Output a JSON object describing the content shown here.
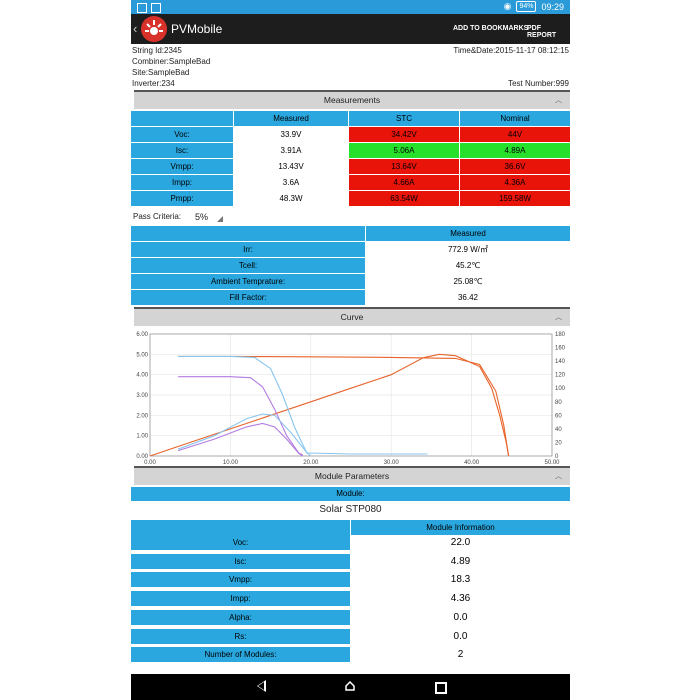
{
  "status_bar": {
    "battery": "94%",
    "time": "09:29"
  },
  "app_bar": {
    "back": "‹",
    "title": "PVMobile",
    "bookmarks": "ADD TO BOOKMARKS",
    "pdf": "PDF REPORT"
  },
  "info": {
    "string_id": "String Id:2345",
    "combiner": "Combiner:SampleBad",
    "site": "Site:SampleBad",
    "inverter": "Inverter:234",
    "datetime": "Time&Date:2015-11-17 08:12:15",
    "test_number": "Test Number:999"
  },
  "measurements": {
    "title": "Measurements",
    "headers": [
      "Measured",
      "STC",
      "Nominal"
    ],
    "rows": [
      {
        "label": "Voc:",
        "measured": "33.9V",
        "stc": "34.42V",
        "nominal": "44V",
        "stc_status": "red",
        "nominal_status": "red"
      },
      {
        "label": "Isc:",
        "measured": "3.91A",
        "stc": "5.06A",
        "nominal": "4.89A",
        "stc_status": "green",
        "nominal_status": "green"
      },
      {
        "label": "Vmpp:",
        "measured": "13.43V",
        "stc": "13.64V",
        "nominal": "36.6V",
        "stc_status": "red",
        "nominal_status": "red"
      },
      {
        "label": "Impp:",
        "measured": "3.6A",
        "stc": "4.66A",
        "nominal": "4.36A",
        "stc_status": "red",
        "nominal_status": "red"
      },
      {
        "label": "Pmpp:",
        "measured": "48.3W",
        "stc": "63.54W",
        "nominal": "159.58W",
        "stc_status": "red",
        "nominal_status": "red"
      }
    ]
  },
  "pass_criteria": {
    "label": "Pass Criteria:",
    "value": "5%"
  },
  "conditions": {
    "header": "Measured",
    "rows": [
      {
        "label": "Irr:",
        "value": "772.9 W/㎡"
      },
      {
        "label": "Tcell:",
        "value": "45.2℃"
      },
      {
        "label": "Ambient Temprature:",
        "value": "25.08℃"
      },
      {
        "label": "Fill Factor:",
        "value": "36.42"
      }
    ]
  },
  "curve_section": {
    "title": "Curve"
  },
  "chart_data": {
    "type": "line",
    "x_ticks": [
      "0.00",
      "10.00",
      "20.00",
      "30.00",
      "40.00",
      "50.00"
    ],
    "y_left_ticks": [
      "0.00",
      "1.00",
      "2.00",
      "3.00",
      "4.00",
      "5.00",
      "6.00"
    ],
    "y_right_ticks": [
      "0",
      "20",
      "40",
      "60",
      "80",
      "100",
      "120",
      "140",
      "160",
      "180"
    ],
    "xlim": [
      0,
      50
    ],
    "ylim_left": [
      0,
      6
    ],
    "ylim_right": [
      0,
      180
    ],
    "series": [
      {
        "axis": "left",
        "color": "#e8642a",
        "points": [
          [
            3.5,
            4.9
          ],
          [
            10,
            4.9
          ],
          [
            20,
            4.88
          ],
          [
            30,
            4.85
          ],
          [
            38,
            4.8
          ],
          [
            41,
            4.5
          ],
          [
            43,
            3.2
          ],
          [
            44,
            1.5
          ],
          [
            44.6,
            0
          ]
        ]
      },
      {
        "axis": "right",
        "color": "#e8642a",
        "points": [
          [
            0,
            0
          ],
          [
            5,
            20
          ],
          [
            10,
            40
          ],
          [
            15,
            60
          ],
          [
            20,
            80
          ],
          [
            25,
            100
          ],
          [
            30,
            120
          ],
          [
            34,
            145
          ],
          [
            36,
            150
          ],
          [
            38,
            148
          ],
          [
            41,
            132
          ],
          [
            42.5,
            100
          ],
          [
            43.5,
            60
          ],
          [
            44.3,
            20
          ],
          [
            44.6,
            0
          ]
        ]
      },
      {
        "axis": "left",
        "color": "#87c5ee",
        "points": [
          [
            3.5,
            4.9
          ],
          [
            10,
            4.9
          ],
          [
            13,
            4.85
          ],
          [
            15,
            4.3
          ],
          [
            16.5,
            3.0
          ],
          [
            18,
            1.4
          ],
          [
            19.5,
            0.15
          ],
          [
            25,
            0.1
          ],
          [
            34.5,
            0.1
          ]
        ]
      },
      {
        "axis": "left",
        "color": "#b27be0",
        "points": [
          [
            3.5,
            3.9
          ],
          [
            10,
            3.9
          ],
          [
            12.5,
            3.85
          ],
          [
            14,
            3.4
          ],
          [
            15.5,
            2.3
          ],
          [
            17,
            1.0
          ],
          [
            18.5,
            0.15
          ],
          [
            19,
            0.05
          ]
        ]
      },
      {
        "axis": "right",
        "color": "#87c5ee",
        "points": [
          [
            3.5,
            10
          ],
          [
            8,
            30
          ],
          [
            12,
            55
          ],
          [
            14,
            62
          ],
          [
            15.5,
            60
          ],
          [
            17.5,
            35
          ],
          [
            19.5,
            5
          ],
          [
            20,
            0
          ]
        ]
      },
      {
        "axis": "right",
        "color": "#b27be0",
        "points": [
          [
            3.5,
            8
          ],
          [
            8,
            25
          ],
          [
            12,
            43
          ],
          [
            14,
            48
          ],
          [
            15.5,
            43
          ],
          [
            17,
            25
          ],
          [
            18.5,
            4
          ],
          [
            19,
            0
          ]
        ]
      }
    ]
  },
  "module_parameters": {
    "title": "Module Parameters",
    "module_label": "Module:",
    "module_name": "Solar STP080",
    "info_header": "Module Information",
    "rows": [
      {
        "label": "Voc:",
        "value": "22.0"
      },
      {
        "label": "Isc:",
        "value": "4.89"
      },
      {
        "label": "Vmpp:",
        "value": "18.3"
      },
      {
        "label": "Impp:",
        "value": "4.36"
      },
      {
        "label": "Alpha:",
        "value": "0.0"
      },
      {
        "label": "Rs:",
        "value": "0.0"
      },
      {
        "label": "Number of Modules:",
        "value": "2"
      }
    ]
  },
  "colors": {
    "accent": "#2aa7df",
    "fail": "#e8140a",
    "pass": "#27e02b",
    "appbar": "#1d1d1d"
  }
}
